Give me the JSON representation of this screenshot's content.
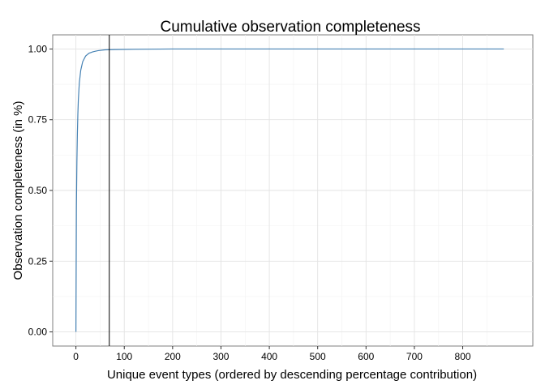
{
  "chart_data": {
    "type": "line",
    "title": "Cumulative observation completeness",
    "xlabel": "Unique event types (ordered by descending percentage contribution)",
    "ylabel": "Observation completeness (in %)",
    "xlim": [
      -48,
      945
    ],
    "ylim": [
      -0.05,
      1.05
    ],
    "x_ticks": [
      0,
      100,
      200,
      300,
      400,
      500,
      600,
      700,
      800
    ],
    "x_tick_labels": [
      "0",
      "100",
      "200",
      "300",
      "400",
      "500",
      "600",
      "700",
      "800"
    ],
    "y_ticks": [
      0.0,
      0.25,
      0.5,
      0.75,
      1.0
    ],
    "y_tick_labels": [
      "0.00",
      "0.25",
      "0.50",
      "0.75",
      "1.00"
    ],
    "grid": true,
    "series": [
      {
        "color": "#4682b4",
        "x": [
          0,
          1,
          2,
          3,
          4,
          5,
          7,
          10,
          14,
          20,
          27,
          35,
          45,
          60,
          80,
          120,
          200,
          400,
          600,
          885
        ],
        "y": [
          0.0,
          0.44,
          0.6,
          0.7,
          0.77,
          0.82,
          0.88,
          0.925,
          0.955,
          0.975,
          0.985,
          0.99,
          0.994,
          0.997,
          0.998,
          0.999,
          1.0,
          1.0,
          1.0,
          1.0
        ]
      }
    ],
    "vertical_line": {
      "x": 69,
      "color": "#000000"
    }
  }
}
